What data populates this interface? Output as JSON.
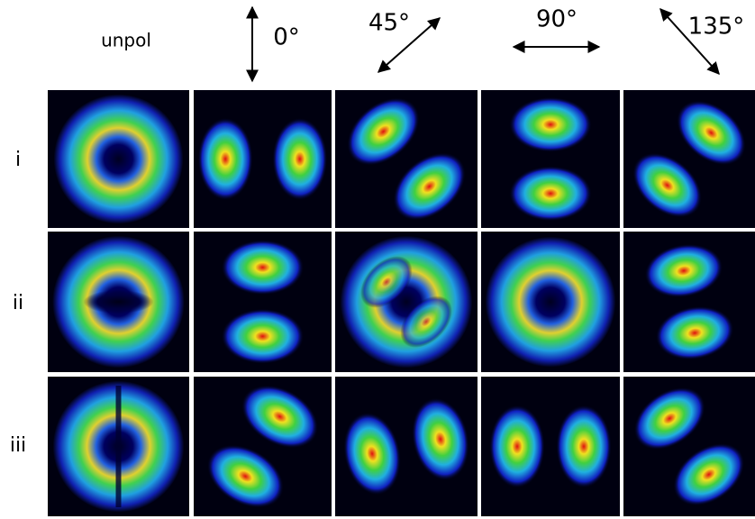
{
  "columns": [
    "unpol",
    "0°",
    "45°",
    "90°",
    "135°"
  ],
  "rows": [
    "i",
    "ii",
    "iii"
  ]
}
